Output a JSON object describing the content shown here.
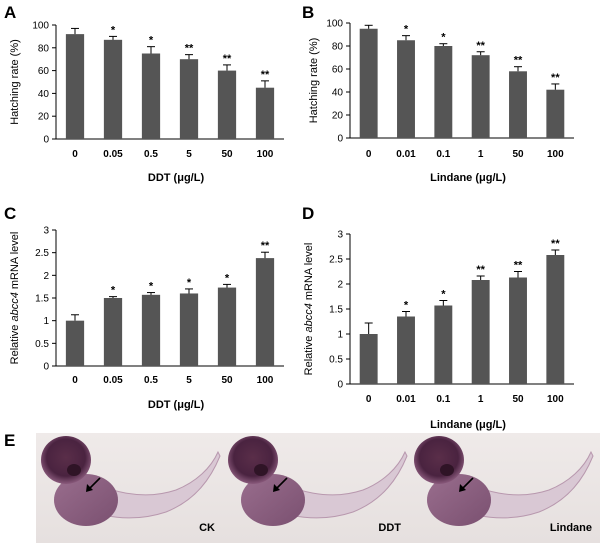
{
  "chart_data": [
    {
      "panel": "A",
      "type": "bar",
      "categories": [
        "0",
        "0.05",
        "0.5",
        "5",
        "50",
        "100"
      ],
      "values": [
        92,
        87,
        75,
        70,
        60,
        45
      ],
      "errors": [
        5,
        3,
        6,
        4,
        5,
        6
      ],
      "significance": [
        "",
        "*",
        "*",
        "**",
        "**",
        "**"
      ],
      "xlabel": "DDT  (μg/L)",
      "ylabel": "Hatching rate (%)",
      "ylim": [
        0,
        100
      ],
      "yticks": [
        "0",
        "20",
        "40",
        "60",
        "80",
        "100"
      ],
      "bar_color": "#555555"
    },
    {
      "panel": "B",
      "type": "bar",
      "categories": [
        "0",
        "0.01",
        "0.1",
        "1",
        "50",
        "100"
      ],
      "values": [
        95,
        85,
        80,
        72,
        58,
        42
      ],
      "errors": [
        3,
        4,
        2,
        3,
        4,
        5
      ],
      "significance": [
        "",
        "*",
        "*",
        "**",
        "**",
        "**"
      ],
      "xlabel": "Lindane  (μg/L)",
      "ylabel": "Hatching rate (%)",
      "ylim": [
        0,
        100
      ],
      "yticks": [
        "0",
        "20",
        "40",
        "60",
        "80",
        "100"
      ],
      "bar_color": "#555555"
    },
    {
      "panel": "C",
      "type": "bar",
      "categories": [
        "0",
        "0.05",
        "0.5",
        "5",
        "50",
        "100"
      ],
      "values": [
        1.0,
        1.5,
        1.57,
        1.6,
        1.73,
        2.38
      ],
      "errors": [
        0.13,
        0.03,
        0.05,
        0.1,
        0.07,
        0.13
      ],
      "significance": [
        "",
        "*",
        "*",
        "*",
        "*",
        "**"
      ],
      "xlabel": "DDT  (μg/L)",
      "ylabel_parts": [
        "Relative ",
        "abcc4",
        " mRNA  level"
      ],
      "ylim": [
        0,
        3
      ],
      "yticks": [
        "0",
        "0.5",
        "1",
        "1.5",
        "2",
        "2.5",
        "3"
      ],
      "bar_color": "#555555"
    },
    {
      "panel": "D",
      "type": "bar",
      "categories": [
        "0",
        "0.01",
        "0.1",
        "1",
        "50",
        "100"
      ],
      "values": [
        1.0,
        1.35,
        1.57,
        2.08,
        2.13,
        2.58
      ],
      "errors": [
        0.22,
        0.1,
        0.1,
        0.08,
        0.12,
        0.1
      ],
      "significance": [
        "",
        "*",
        "*",
        "**",
        "**",
        "**"
      ],
      "xlabel": "Lindane  (μg/L)",
      "ylabel_parts": [
        "Relative ",
        "abcc4",
        " mRNA  level"
      ],
      "ylim": [
        0,
        3
      ],
      "yticks": [
        "0",
        "0.5",
        "1",
        "1.5",
        "2",
        "2.5",
        "3"
      ],
      "bar_color": "#555555"
    }
  ],
  "panel_e": {
    "letter": "E",
    "images": [
      {
        "label": "CK"
      },
      {
        "label": "DDT"
      },
      {
        "label": "Lindane"
      }
    ]
  }
}
